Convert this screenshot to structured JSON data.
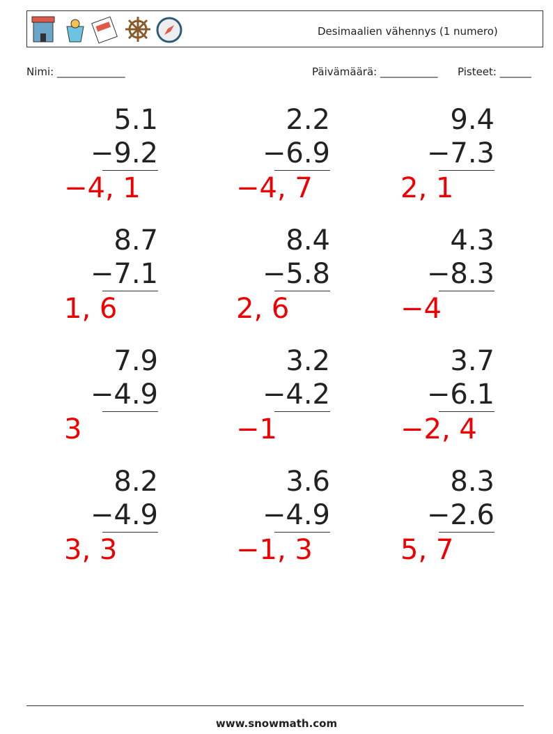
{
  "header": {
    "title": "Desimaalien vähennys (1 numero)"
  },
  "fields": {
    "name": "Nimi: _____________",
    "date": "Päivämäärä: ___________",
    "score": "Pisteet: ______"
  },
  "problems": [
    {
      "top": "5.1",
      "bottom": "−9.2",
      "answer": "−4, 1"
    },
    {
      "top": "2.2",
      "bottom": "−6.9",
      "answer": "−4, 7"
    },
    {
      "top": "9.4",
      "bottom": "−7.3",
      "answer": "2, 1"
    },
    {
      "top": "8.7",
      "bottom": "−7.1",
      "answer": "1, 6"
    },
    {
      "top": "8.4",
      "bottom": "−5.8",
      "answer": "2, 6"
    },
    {
      "top": "4.3",
      "bottom": "−8.3",
      "answer": "−4"
    },
    {
      "top": "7.9",
      "bottom": "−4.9",
      "answer": "3"
    },
    {
      "top": "3.2",
      "bottom": "−4.2",
      "answer": "−1"
    },
    {
      "top": "3.7",
      "bottom": "−6.1",
      "answer": "−2, 4"
    },
    {
      "top": "8.2",
      "bottom": "−4.9",
      "answer": "3, 3"
    },
    {
      "top": "3.6",
      "bottom": "−4.9",
      "answer": "−1, 3"
    },
    {
      "top": "8.3",
      "bottom": "−2.6",
      "answer": "5, 7"
    }
  ],
  "footer": {
    "url": "www.snowmath.com"
  }
}
